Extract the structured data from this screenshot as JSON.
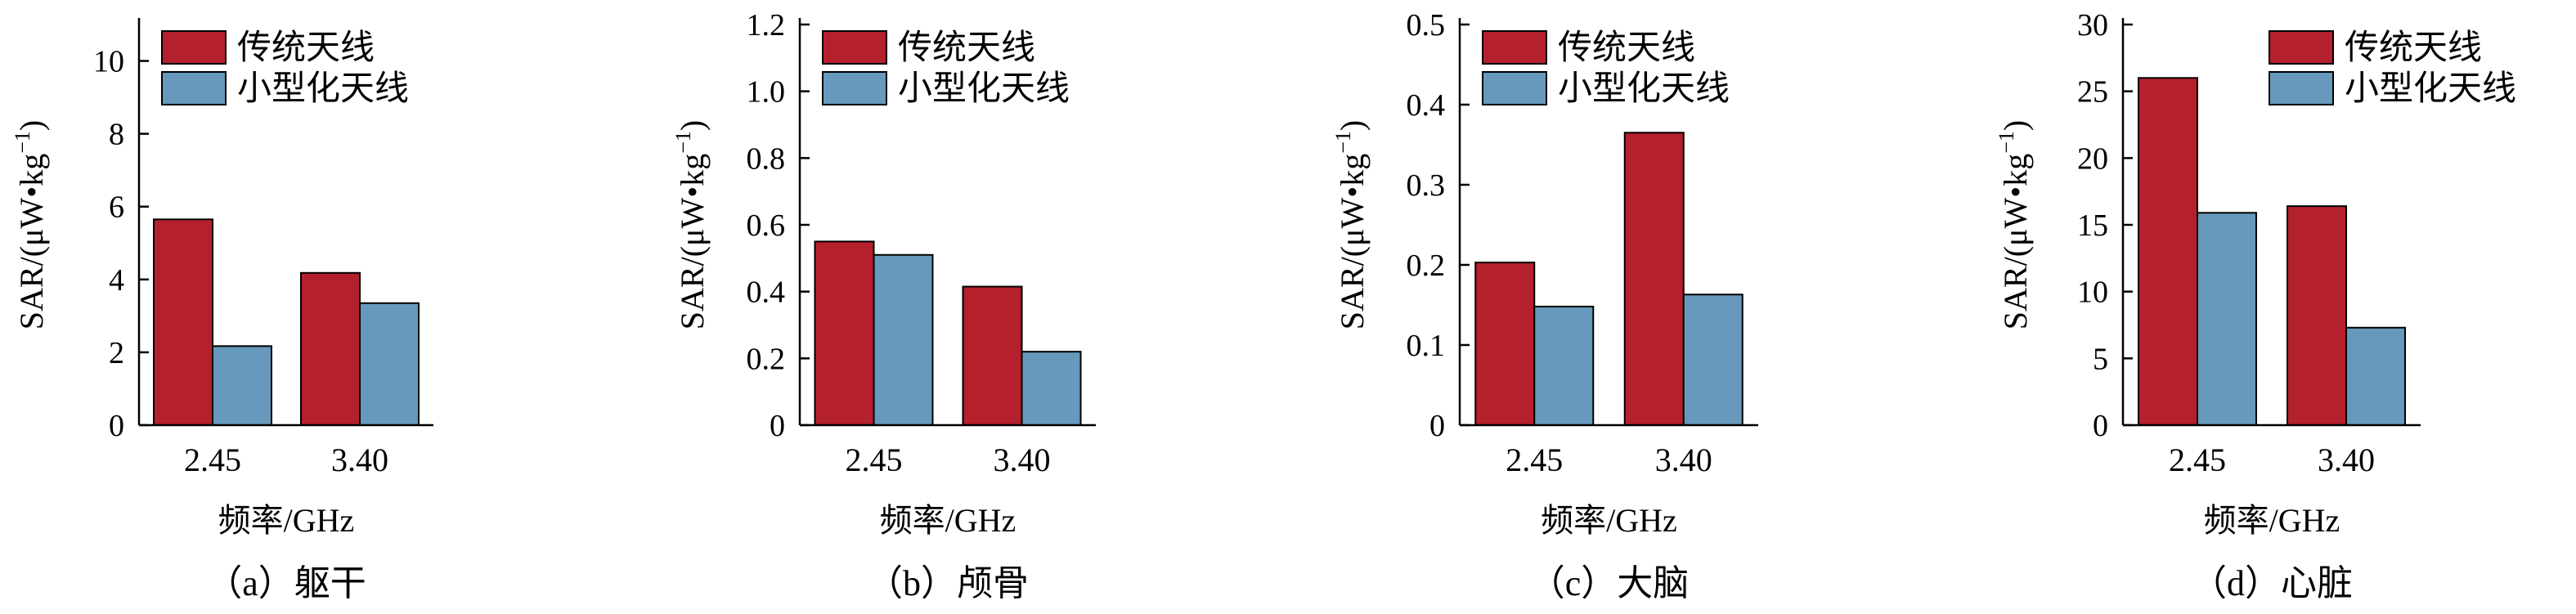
{
  "xlabel": "频率/GHz",
  "ylabel": {
    "main": "SAR/(μW",
    "dot": "•",
    "unit": "kg",
    "sup": "−1",
    "close": ")"
  },
  "colors": {
    "series_0": "#b5202d",
    "series_1": "#6699bb"
  },
  "chart_data": [
    {
      "type": "bar",
      "caption": "（a）躯干",
      "categories": [
        "2.45",
        "3.40"
      ],
      "series": [
        {
          "name": "传统天线",
          "values": [
            5.65,
            4.18
          ]
        },
        {
          "name": "小型化天线",
          "values": [
            2.17,
            3.35
          ]
        }
      ],
      "ylim": [
        0,
        11
      ],
      "yticks": [
        0,
        2,
        4,
        6,
        8,
        10
      ],
      "ytick_labels": [
        "0",
        "2",
        "4",
        "6",
        "8",
        "10"
      ],
      "legend": "top-left"
    },
    {
      "type": "bar",
      "caption": "（b）颅骨",
      "categories": [
        "2.45",
        "3.40"
      ],
      "series": [
        {
          "name": "传统天线",
          "values": [
            0.55,
            0.415
          ]
        },
        {
          "name": "小型化天线",
          "values": [
            0.51,
            0.22
          ]
        }
      ],
      "ylim": [
        0,
        1.2
      ],
      "yticks": [
        0,
        0.2,
        0.4,
        0.6,
        0.8,
        1.0,
        1.2
      ],
      "ytick_labels": [
        "0",
        "0.2",
        "0.4",
        "0.6",
        "0.8",
        "1.0",
        "1.2"
      ],
      "legend": "top-left"
    },
    {
      "type": "bar",
      "caption": "（c）大脑",
      "categories": [
        "2.45",
        "3.40"
      ],
      "series": [
        {
          "name": "传统天线",
          "values": [
            0.203,
            0.365
          ]
        },
        {
          "name": "小型化天线",
          "values": [
            0.148,
            0.163
          ]
        }
      ],
      "ylim": [
        0,
        0.5
      ],
      "yticks": [
        0,
        0.1,
        0.2,
        0.3,
        0.4,
        0.5
      ],
      "ytick_labels": [
        "0",
        "0.1",
        "0.2",
        "0.3",
        "0.4",
        "0.5"
      ],
      "legend": "top-left"
    },
    {
      "type": "bar",
      "caption": "（d）心脏",
      "categories": [
        "2.45",
        "3.40"
      ],
      "series": [
        {
          "name": "传统天线",
          "values": [
            26.0,
            16.4
          ]
        },
        {
          "name": "小型化天线",
          "values": [
            15.9,
            7.3
          ]
        }
      ],
      "ylim": [
        0,
        30
      ],
      "yticks": [
        0,
        5,
        10,
        15,
        20,
        25,
        30
      ],
      "ytick_labels": [
        "0",
        "5",
        "10",
        "15",
        "20",
        "25",
        "30"
      ],
      "legend": "top-right"
    }
  ]
}
